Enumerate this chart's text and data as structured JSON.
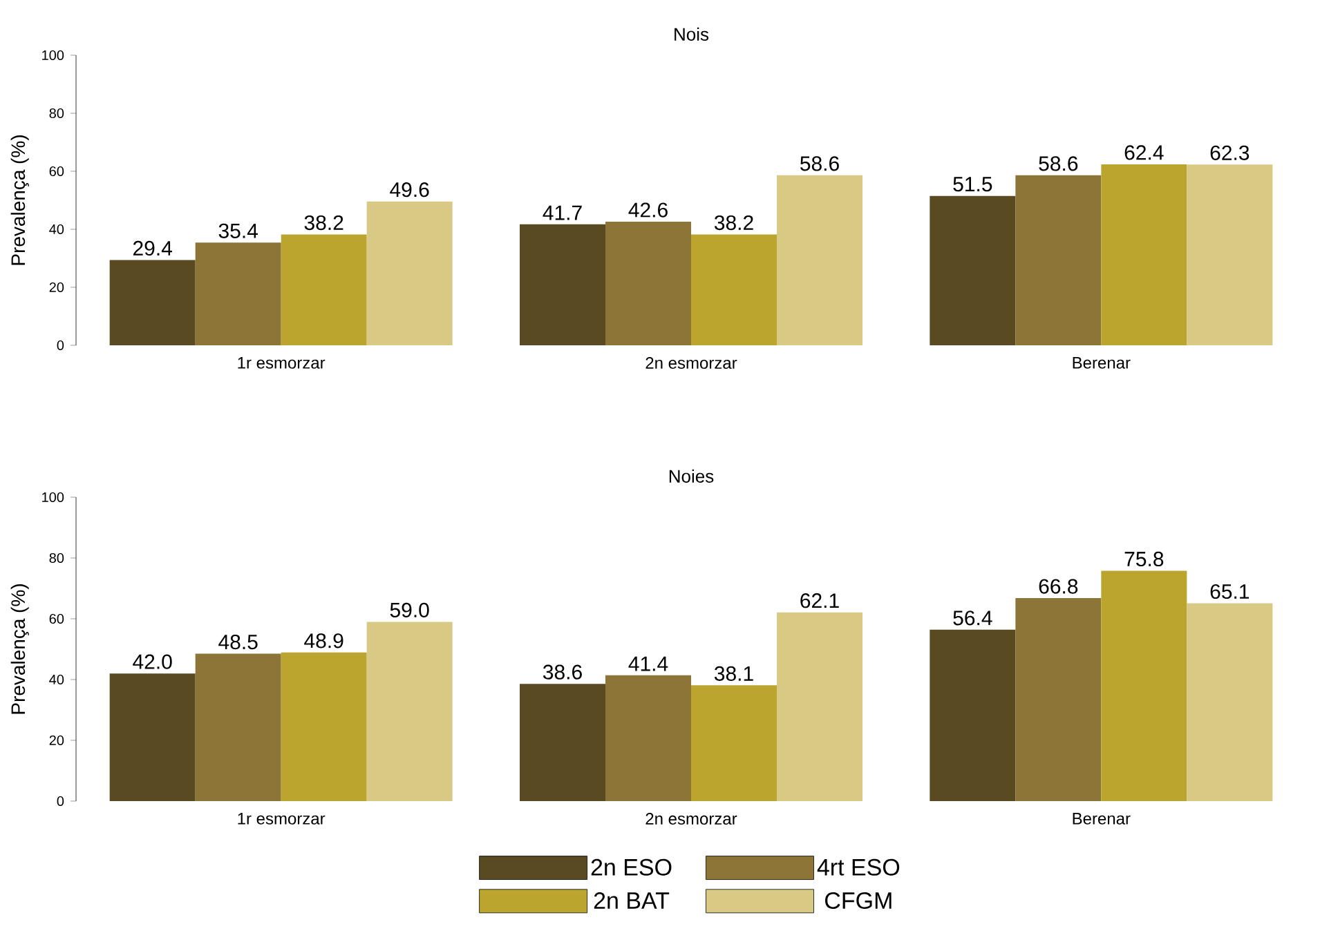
{
  "chart_data": [
    {
      "type": "bar",
      "title": "Nois",
      "ylabel": "Prevalença (%)",
      "categories": [
        "1r esmorzar",
        "2n esmorzar",
        "Berenar"
      ],
      "ylim": [
        0,
        100
      ],
      "yticks": [
        0,
        20,
        40,
        60,
        80,
        100
      ],
      "data_labels": true,
      "legend": false,
      "series": [
        {
          "color": "#5a4a22",
          "values": [
            29.4,
            41.7,
            51.5
          ]
        },
        {
          "color": "#8c7536",
          "values": [
            35.4,
            42.6,
            58.6
          ]
        },
        {
          "color": "#bca52f",
          "values": [
            38.2,
            38.2,
            62.4
          ]
        },
        {
          "color": "#d8ca84",
          "values": [
            49.6,
            58.6,
            62.3
          ]
        }
      ]
    },
    {
      "type": "bar",
      "title": "Noies",
      "ylabel": "Prevalença (%)",
      "categories": [
        "1r esmorzar",
        "2n esmorzar",
        "Berenar"
      ],
      "ylim": [
        0,
        100
      ],
      "yticks": [
        0,
        20,
        40,
        60,
        80,
        100
      ],
      "legend": "bottom",
      "series": [
        {
          "name": "2n ESO",
          "color": "#5a4a22",
          "values": [
            42.0,
            38.6,
            56.4
          ],
          "value_labels": [
            "42.0",
            "38.6",
            "56.4"
          ]
        },
        {
          "name": "4rt ESO",
          "color": "#8c7536",
          "values": [
            48.5,
            41.4,
            66.8
          ],
          "value_labels": [
            "48.5",
            "41.4",
            "66.8"
          ]
        },
        {
          "name": "2n BAT",
          "color": "#bca52f",
          "values": [
            48.9,
            38.1,
            75.8
          ],
          "value_labels": [
            "48.9",
            "38.1",
            "75.8"
          ]
        },
        {
          "name": "CFGM",
          "color": "#d8ca84",
          "values": [
            59.0,
            62.1,
            65.1
          ],
          "value_labels": [
            "59.0",
            "62.1",
            "65.1"
          ]
        }
      ]
    }
  ]
}
